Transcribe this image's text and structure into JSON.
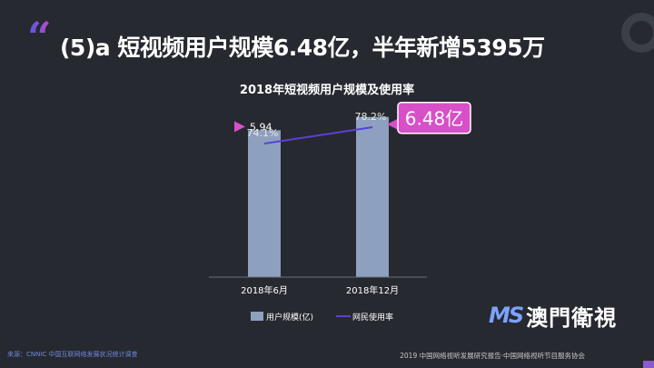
{
  "header": {
    "quote_mark": "“",
    "title": "(5)a 短视频用户规模6.48亿，半年新增5395万"
  },
  "chart_data": {
    "type": "bar",
    "title": "2018年短视频用户规模及使用率",
    "categories": [
      "2018年6月",
      "2018年12月"
    ],
    "series": [
      {
        "name": "用户规模(亿)",
        "kind": "bar",
        "values": [
          5.94,
          6.48
        ],
        "labels": [
          "5.94",
          "6.48亿"
        ],
        "color": "#8da0bf"
      },
      {
        "name": "网民使用率",
        "kind": "line",
        "values": [
          74.1,
          78.2
        ],
        "labels": [
          "74.1%",
          "78.2%"
        ],
        "color": "#5b3fd8"
      }
    ],
    "ylim": [
      0,
      6.8
    ],
    "y2lim": [
      0,
      100
    ],
    "legend_position": "bottom",
    "highlight_color": "#d84fc8",
    "grid": false
  },
  "footer": {
    "source": "来源：CNNIC 中国互联网络发展状况统计调查",
    "org": "2019 中国网络视听发展研究报告·中国网络视听节目服务协会"
  },
  "logo": {
    "ms": "MS",
    "cn": "澳門衛視"
  }
}
